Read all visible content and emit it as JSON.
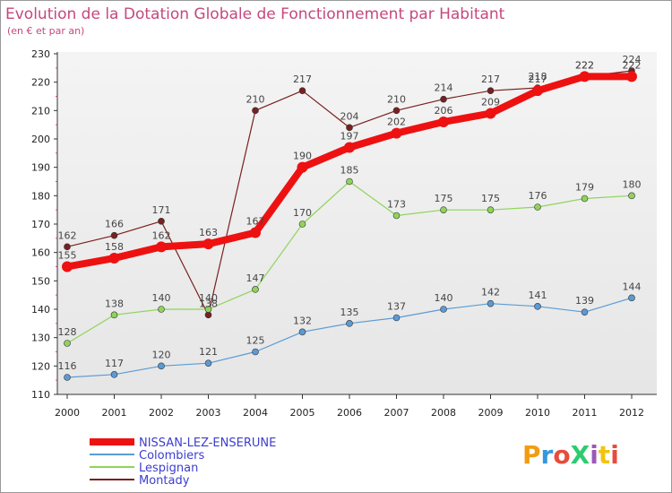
{
  "chart_data": {
    "type": "line",
    "title": "Evolution de la Dotation Globale de Fonctionnement par Habitant",
    "subtitle": "(en € et par an)",
    "x": [
      "2000",
      "2001",
      "2002",
      "2003",
      "2004",
      "2005",
      "2006",
      "2007",
      "2008",
      "2009",
      "2010",
      "2011",
      "2012"
    ],
    "ylim": [
      110,
      230
    ],
    "yticks": [
      110,
      120,
      130,
      140,
      150,
      160,
      170,
      180,
      190,
      200,
      210,
      220,
      230
    ],
    "series": [
      {
        "name": "Montady",
        "color": "#7a1f1f",
        "values": [
          162,
          166,
          171,
          138,
          210,
          217,
          204,
          210,
          214,
          217,
          218,
          222,
          224
        ]
      },
      {
        "name": "Lespignan",
        "color": "#8fd45a",
        "values": [
          128,
          138,
          140,
          140,
          147,
          170,
          185,
          173,
          175,
          175,
          176,
          179,
          180
        ]
      },
      {
        "name": "Colombiers",
        "color": "#5b9bd5",
        "values": [
          116,
          117,
          120,
          121,
          125,
          132,
          135,
          137,
          140,
          142,
          141,
          139,
          144
        ]
      },
      {
        "name": "NISSAN-LEZ-ENSERUNE",
        "color": "#ee1111",
        "values": [
          155,
          158,
          162,
          163,
          167,
          190,
          197,
          202,
          206,
          209,
          217,
          222,
          222
        ]
      }
    ],
    "legend": [
      "NISSAN-LEZ-ENSERUNE",
      "Colombiers",
      "Lespignan",
      "Montady"
    ],
    "legend_placement": "bottom-left",
    "grid": false
  },
  "logo": {
    "text": "ProXiti",
    "letters": [
      "P",
      "r",
      "o",
      "X",
      "i",
      "t",
      "i"
    ],
    "colors": [
      "#f39c12",
      "#3498db",
      "#e74c3c",
      "#2ecc71",
      "#9b59b6",
      "#f1c40f",
      "#e74c3c"
    ]
  }
}
